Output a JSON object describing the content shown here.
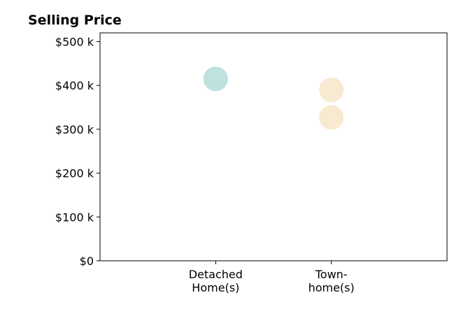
{
  "chart_data": {
    "type": "scatter",
    "title": "Selling Price",
    "xlabel": "",
    "ylabel": "",
    "categories": [
      [
        "Detached",
        "Home(s)"
      ],
      [
        "Town-",
        "home(s)"
      ]
    ],
    "y_ticks": [
      "$0",
      "$100 k",
      "$200 k",
      "$300 k",
      "$400 k",
      "$500 k"
    ],
    "y_tick_values": [
      0,
      100000,
      200000,
      300000,
      400000,
      500000
    ],
    "ylim": [
      0,
      520000
    ],
    "xlim": [
      -1,
      2
    ],
    "grid": false,
    "points": [
      {
        "category_index": 0,
        "value": 415000,
        "color": "#b7dfdb"
      },
      {
        "category_index": 1,
        "value": 390000,
        "color": "#f7e8cc"
      },
      {
        "category_index": 1,
        "value": 327000,
        "color": "#f7e8cc"
      }
    ]
  }
}
